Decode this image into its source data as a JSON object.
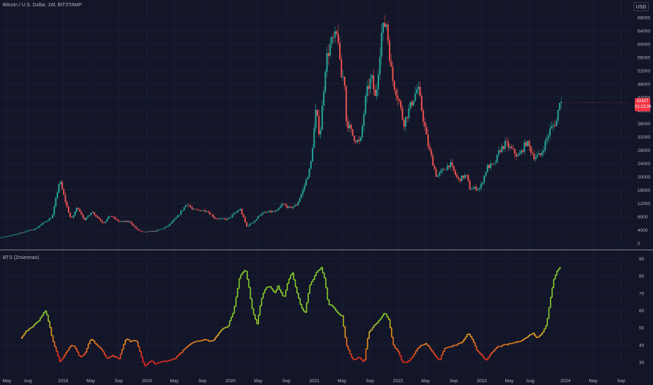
{
  "header": {
    "symbol_title": "Bitcoin / U.S. Dollar, 1W, BITSTAMP",
    "currency": "USD",
    "last_price": "42427",
    "countdown": "01:13:26",
    "indicator_title": "BTS (Zmierman)"
  },
  "colors": {
    "background": "#131629",
    "grid": "#1b1f34",
    "separator": "#b2b5be",
    "candle_up": "#26a69a",
    "candle_down": "#ef5350",
    "axis_text": "#b2b5be",
    "last_price_tag": "#f23645"
  },
  "chart_data": [
    {
      "type": "candlestick",
      "title": "Bitcoin / U.S. Dollar, 1W, BITSTAMP",
      "y_ticks": [
        0,
        4000,
        8000,
        12000,
        16000,
        20000,
        24000,
        28000,
        32000,
        36000,
        40000,
        44000,
        48000,
        52000,
        56000,
        60000,
        64000,
        68000
      ],
      "ylim": [
        -1000,
        69500
      ],
      "x_ticks": [
        "May",
        "Aug",
        "2018",
        "May",
        "Sep",
        "2019",
        "May",
        "Sep",
        "2020",
        "May",
        "Sep",
        "2021",
        "May",
        "Sep",
        "2022",
        "May",
        "Sep",
        "2023",
        "May",
        "Aug",
        "2024",
        "May",
        "Sep"
      ],
      "x_tick_dates": [
        "2017-05-01",
        "2017-08-01",
        "2018-01-01",
        "2018-05-01",
        "2018-09-01",
        "2019-01-01",
        "2019-05-01",
        "2019-09-01",
        "2020-01-01",
        "2020-05-01",
        "2020-09-01",
        "2021-01-01",
        "2021-05-01",
        "2021-09-01",
        "2022-01-01",
        "2022-05-01",
        "2022-09-01",
        "2023-01-01",
        "2023-05-01",
        "2023-08-01",
        "2024-01-01",
        "2024-05-01",
        "2024-09-01"
      ],
      "close_path": [
        [
          "2016-12-15",
          1000
        ],
        [
          "2017-03-01",
          1200
        ],
        [
          "2017-06-01",
          2500
        ],
        [
          "2017-09-01",
          4300
        ],
        [
          "2017-11-15",
          8000
        ],
        [
          "2017-12-17",
          19000
        ],
        [
          "2018-01-15",
          11500
        ],
        [
          "2018-02-05",
          7000
        ],
        [
          "2018-03-05",
          11000
        ],
        [
          "2018-04-05",
          6800
        ],
        [
          "2018-05-05",
          9600
        ],
        [
          "2018-06-25",
          6000
        ],
        [
          "2018-07-25",
          8300
        ],
        [
          "2018-09-01",
          6500
        ],
        [
          "2018-10-20",
          6400
        ],
        [
          "2018-11-20",
          4000
        ],
        [
          "2018-12-15",
          3300
        ],
        [
          "2019-02-10",
          3600
        ],
        [
          "2019-04-01",
          5000
        ],
        [
          "2019-05-15",
          8000
        ],
        [
          "2019-06-26",
          12000
        ],
        [
          "2019-07-20",
          10000
        ],
        [
          "2019-09-20",
          9800
        ],
        [
          "2019-10-25",
          7500
        ],
        [
          "2019-11-25",
          7200
        ],
        [
          "2019-12-20",
          7200
        ],
        [
          "2020-02-12",
          10300
        ],
        [
          "2020-03-12",
          5000
        ],
        [
          "2020-04-20",
          7000
        ],
        [
          "2020-05-10",
          8800
        ],
        [
          "2020-06-15",
          9400
        ],
        [
          "2020-07-20",
          9500
        ],
        [
          "2020-08-15",
          11800
        ],
        [
          "2020-09-15",
          10500
        ],
        [
          "2020-10-15",
          11500
        ],
        [
          "2020-11-10",
          15500
        ],
        [
          "2020-12-15",
          23000
        ],
        [
          "2021-01-08",
          40000
        ],
        [
          "2021-01-25",
          32000
        ],
        [
          "2021-02-20",
          55000
        ],
        [
          "2021-03-13",
          60000
        ],
        [
          "2021-04-14",
          63000
        ],
        [
          "2021-04-25",
          50000
        ],
        [
          "2021-05-12",
          50000
        ],
        [
          "2021-05-20",
          37000
        ],
        [
          "2021-06-20",
          32000
        ],
        [
          "2021-07-20",
          30000
        ],
        [
          "2021-08-15",
          45000
        ],
        [
          "2021-09-07",
          50000
        ],
        [
          "2021-09-25",
          43000
        ],
        [
          "2021-10-20",
          63000
        ],
        [
          "2021-11-10",
          67000
        ],
        [
          "2021-12-05",
          50000
        ],
        [
          "2022-01-05",
          43000
        ],
        [
          "2022-01-25",
          36000
        ],
        [
          "2022-03-28",
          47000
        ],
        [
          "2022-05-10",
          30000
        ],
        [
          "2022-06-18",
          20000
        ],
        [
          "2022-08-15",
          24000
        ],
        [
          "2022-09-20",
          19000
        ],
        [
          "2022-10-25",
          20500
        ],
        [
          "2022-11-10",
          16500
        ],
        [
          "2022-12-25",
          16500
        ],
        [
          "2023-01-25",
          23000
        ],
        [
          "2023-02-25",
          23500
        ],
        [
          "2023-03-20",
          28000
        ],
        [
          "2023-04-15",
          30000
        ],
        [
          "2023-06-10",
          26000
        ],
        [
          "2023-07-15",
          30500
        ],
        [
          "2023-08-18",
          26000
        ],
        [
          "2023-09-15",
          26500
        ],
        [
          "2023-10-25",
          34000
        ],
        [
          "2023-11-25",
          37000
        ],
        [
          "2023-12-08",
          44000
        ],
        [
          "2023-12-14",
          42427
        ]
      ]
    },
    {
      "type": "line",
      "title": "BTS (Zmierman)",
      "y_ticks": [
        30,
        40,
        50,
        60,
        70,
        80,
        90
      ],
      "ylim": [
        25,
        93
      ],
      "hlines": [
        30,
        50,
        70
      ],
      "color_scale": {
        "low": "#e8261c",
        "mid": "#f0a020",
        "high": "#8bd12d"
      },
      "series": [
        {
          "points": [
            [
              "2017-07-01",
              44
            ],
            [
              "2017-07-20",
              48
            ],
            [
              "2017-08-15",
              50
            ],
            [
              "2017-09-15",
              54
            ],
            [
              "2017-10-15",
              60
            ],
            [
              "2017-10-30",
              53
            ],
            [
              "2017-11-15",
              43
            ],
            [
              "2017-12-01",
              37
            ],
            [
              "2017-12-17",
              30
            ],
            [
              "2018-01-10",
              35
            ],
            [
              "2018-02-05",
              40
            ],
            [
              "2018-02-20",
              39
            ],
            [
              "2018-03-15",
              33
            ],
            [
              "2018-04-05",
              35
            ],
            [
              "2018-05-01",
              44
            ],
            [
              "2018-05-20",
              41
            ],
            [
              "2018-06-20",
              37
            ],
            [
              "2018-07-10",
              32
            ],
            [
              "2018-08-01",
              34
            ],
            [
              "2018-09-01",
              32
            ],
            [
              "2018-10-01",
              44
            ],
            [
              "2018-10-20",
              42
            ],
            [
              "2018-11-15",
              43
            ],
            [
              "2018-12-01",
              36
            ],
            [
              "2018-12-20",
              28
            ],
            [
              "2019-01-20",
              31
            ],
            [
              "2019-02-05",
              29
            ],
            [
              "2019-03-01",
              30
            ],
            [
              "2019-04-01",
              31
            ],
            [
              "2019-05-01",
              32
            ],
            [
              "2019-06-01",
              36
            ],
            [
              "2019-07-01",
              40
            ],
            [
              "2019-08-01",
              42
            ],
            [
              "2019-09-10",
              43
            ],
            [
              "2019-10-10",
              42
            ],
            [
              "2019-11-01",
              45
            ],
            [
              "2019-11-20",
              49
            ],
            [
              "2019-12-20",
              51
            ],
            [
              "2020-01-15",
              60
            ],
            [
              "2020-02-10",
              80
            ],
            [
              "2020-03-05",
              84
            ],
            [
              "2020-03-20",
              74
            ],
            [
              "2020-04-05",
              60
            ],
            [
              "2020-04-25",
              52
            ],
            [
              "2020-05-15",
              67
            ],
            [
              "2020-06-01",
              73
            ],
            [
              "2020-06-20",
              74
            ],
            [
              "2020-07-10",
              70
            ],
            [
              "2020-07-25",
              74
            ],
            [
              "2020-08-20",
              67
            ],
            [
              "2020-09-10",
              78
            ],
            [
              "2020-09-25",
              82
            ],
            [
              "2020-10-15",
              71
            ],
            [
              "2020-11-01",
              63
            ],
            [
              "2020-11-20",
              58
            ],
            [
              "2020-12-10",
              74
            ],
            [
              "2021-01-10",
              82
            ],
            [
              "2021-01-30",
              85
            ],
            [
              "2021-02-15",
              78
            ],
            [
              "2021-03-01",
              64
            ],
            [
              "2021-03-25",
              62
            ],
            [
              "2021-04-15",
              58
            ],
            [
              "2021-05-01",
              57
            ],
            [
              "2021-05-20",
              40
            ],
            [
              "2021-06-05",
              35
            ],
            [
              "2021-06-20",
              31
            ],
            [
              "2021-07-15",
              33
            ],
            [
              "2021-08-05",
              30
            ],
            [
              "2021-08-25",
              47
            ],
            [
              "2021-09-15",
              51
            ],
            [
              "2021-10-15",
              55
            ],
            [
              "2021-11-01",
              59
            ],
            [
              "2021-11-20",
              55
            ],
            [
              "2021-12-10",
              40
            ],
            [
              "2022-01-01",
              36
            ],
            [
              "2022-01-20",
              30
            ],
            [
              "2022-02-10",
              30
            ],
            [
              "2022-03-01",
              33
            ],
            [
              "2022-04-01",
              39
            ],
            [
              "2022-05-01",
              41
            ],
            [
              "2022-05-20",
              38
            ],
            [
              "2022-06-10",
              34
            ],
            [
              "2022-07-01",
              31
            ],
            [
              "2022-07-20",
              38
            ],
            [
              "2022-08-15",
              39
            ],
            [
              "2022-09-10",
              40
            ],
            [
              "2022-10-10",
              42
            ],
            [
              "2022-11-01",
              47
            ],
            [
              "2022-11-20",
              43
            ],
            [
              "2022-12-10",
              37
            ],
            [
              "2023-01-01",
              34
            ],
            [
              "2023-01-20",
              31
            ],
            [
              "2023-02-15",
              36
            ],
            [
              "2023-03-10",
              39
            ],
            [
              "2023-04-10",
              40
            ],
            [
              "2023-05-10",
              41
            ],
            [
              "2023-06-10",
              42
            ],
            [
              "2023-07-10",
              44
            ],
            [
              "2023-08-10",
              47
            ],
            [
              "2023-08-30",
              44
            ],
            [
              "2023-09-20",
              47
            ],
            [
              "2023-10-10",
              52
            ],
            [
              "2023-10-25",
              65
            ],
            [
              "2023-11-10",
              78
            ],
            [
              "2023-11-25",
              83
            ],
            [
              "2023-12-08",
              85
            ],
            [
              "2023-12-14",
              88
            ]
          ]
        }
      ]
    }
  ]
}
